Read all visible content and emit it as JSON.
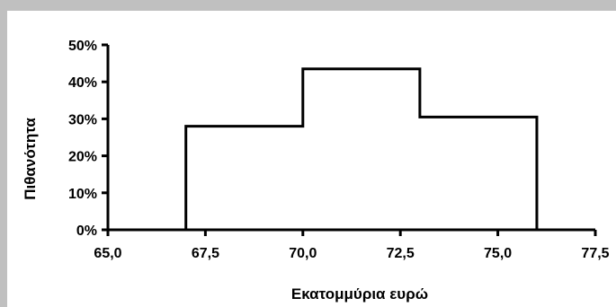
{
  "chart_data": {
    "type": "step",
    "xlabel": "Εκατομμύρια ευρώ",
    "ylabel": "Πιθανότητα",
    "xlim": [
      65.0,
      77.5
    ],
    "ylim": [
      0,
      0.5
    ],
    "x_ticks": [
      "65,0",
      "67,5",
      "70,0",
      "72,5",
      "75,0",
      "77,5"
    ],
    "x_tick_values": [
      65.0,
      67.5,
      70.0,
      72.5,
      75.0,
      77.5
    ],
    "y_ticks": [
      "0%",
      "10%",
      "20%",
      "30%",
      "40%",
      "50%"
    ],
    "y_tick_values": [
      0,
      0.1,
      0.2,
      0.3,
      0.4,
      0.5
    ],
    "bins": [
      {
        "x_start": 67.0,
        "x_end": 70.0,
        "value": 0.28
      },
      {
        "x_start": 70.0,
        "x_end": 73.0,
        "value": 0.435
      },
      {
        "x_start": 73.0,
        "x_end": 76.0,
        "value": 0.305
      }
    ],
    "grid": false,
    "line_color": "#000000"
  }
}
